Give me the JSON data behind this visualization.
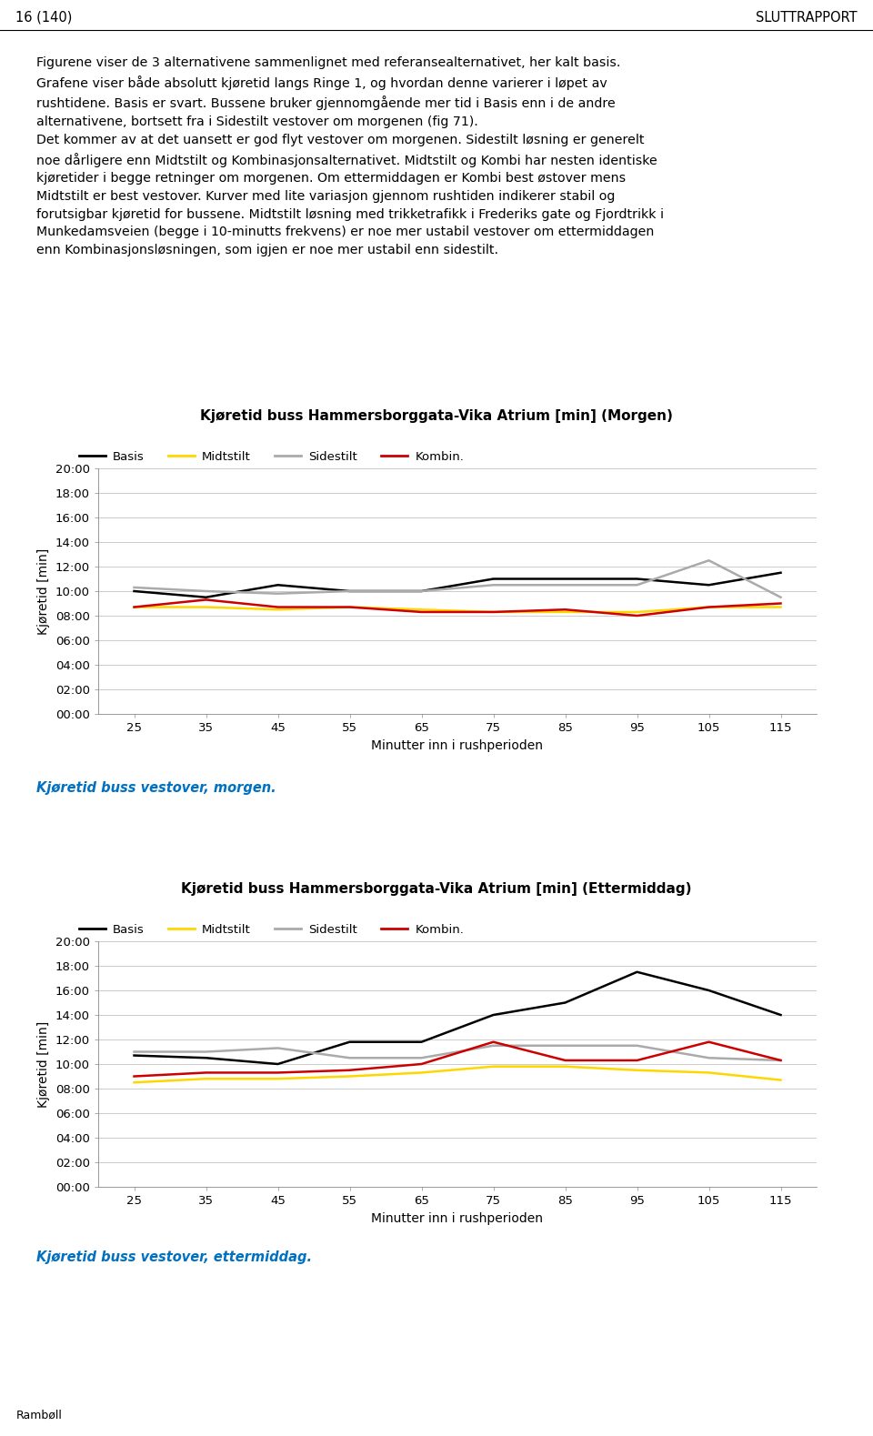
{
  "x": [
    25,
    35,
    45,
    55,
    65,
    75,
    85,
    95,
    105,
    115
  ],
  "morning": {
    "title": "Kjøretid buss Hammersborggata-Vika Atrium [min] (Morgen)",
    "basis": [
      10.0,
      9.5,
      10.5,
      10.0,
      10.0,
      11.0,
      11.0,
      11.0,
      10.5,
      11.5
    ],
    "midtstilt": [
      8.7,
      8.7,
      8.5,
      8.7,
      8.5,
      8.3,
      8.3,
      8.3,
      8.7,
      8.7
    ],
    "sidestilt": [
      10.3,
      10.0,
      9.8,
      10.0,
      10.0,
      10.5,
      10.5,
      10.5,
      12.5,
      9.5
    ],
    "kombin": [
      8.7,
      9.3,
      8.7,
      8.7,
      8.3,
      8.3,
      8.5,
      8.0,
      8.7,
      9.0
    ]
  },
  "afternoon": {
    "title": "Kjøretid buss Hammersborggata-Vika Atrium [min] (Ettermiddag)",
    "basis": [
      10.7,
      10.5,
      10.0,
      11.8,
      11.8,
      14.0,
      15.0,
      17.5,
      16.0,
      14.0
    ],
    "midtstilt": [
      8.5,
      8.8,
      8.8,
      9.0,
      9.3,
      9.8,
      9.8,
      9.5,
      9.3,
      8.7
    ],
    "sidestilt": [
      11.0,
      11.0,
      11.3,
      10.5,
      10.5,
      11.5,
      11.5,
      11.5,
      10.5,
      10.3
    ],
    "kombin": [
      9.0,
      9.3,
      9.3,
      9.5,
      10.0,
      11.8,
      10.3,
      10.3,
      11.8,
      10.3
    ]
  },
  "colors": {
    "basis": "#000000",
    "midtstilt": "#FFD700",
    "sidestilt": "#AAAAAA",
    "kombin": "#CC0000"
  },
  "legend_labels": [
    "Basis",
    "Midtstilt",
    "Sidestilt",
    "Kombin."
  ],
  "xlabel": "Minutter inn i rushperioden",
  "ylabel": "Kjøretid [min]",
  "yticks_labels": [
    "00:00",
    "02:00",
    "04:00",
    "06:00",
    "08:00",
    "10:00",
    "12:00",
    "14:00",
    "16:00",
    "18:00",
    "20:00"
  ],
  "yticks_values": [
    0,
    2,
    4,
    6,
    8,
    10,
    12,
    14,
    16,
    18,
    20
  ],
  "header_left": "16 (140)",
  "header_right": "SLUTTRAPPORT",
  "caption_morning": "Kjøretid buss vestover, morgen.",
  "caption_afternoon": "Kjøretid buss vestover, ettermiddag.",
  "caption_color": "#0070C0",
  "footer_text": "Rambøll",
  "body_lines": [
    "Figurene viser de 3 alternativene sammenlignet med referansealternativet, her kalt basis.",
    "Grafene viser både absolutt kjøretid langs Ringe 1, og hvordan denne varierer i løpet av",
    "rushtidene. Basis er svart. Bussene bruker gjennomgående mer tid i Basis enn i de andre",
    "alternativene, bortsett fra i Sidestilt vestover om morgenen (fig 71).",
    "Det kommer av at det uansett er god flyt vestover om morgenen. Sidestilt løsning er generelt",
    "noe dårligere enn Midtstilt og Kombinasjonsalternativet. Midtstilt og Kombi har nesten identiske",
    "kjøretider i begge retninger om morgenen. Om ettermiddagen er Kombi best østover mens",
    "Midtstilt er best vestover. Kurver med lite variasjon gjennom rushtiden indikerer stabil og",
    "forutsigbar kjøretid for bussene. Midtstilt løsning med trikketrafikk i Frederiks gate og Fjordtrikk i",
    "Munkedamsveien (begge i 10-minutts frekvens) er noe mer ustabil vestover om ettermiddagen",
    "enn Kombinasjonsløsningen, som igjen er noe mer ustabil enn sidestilt."
  ]
}
